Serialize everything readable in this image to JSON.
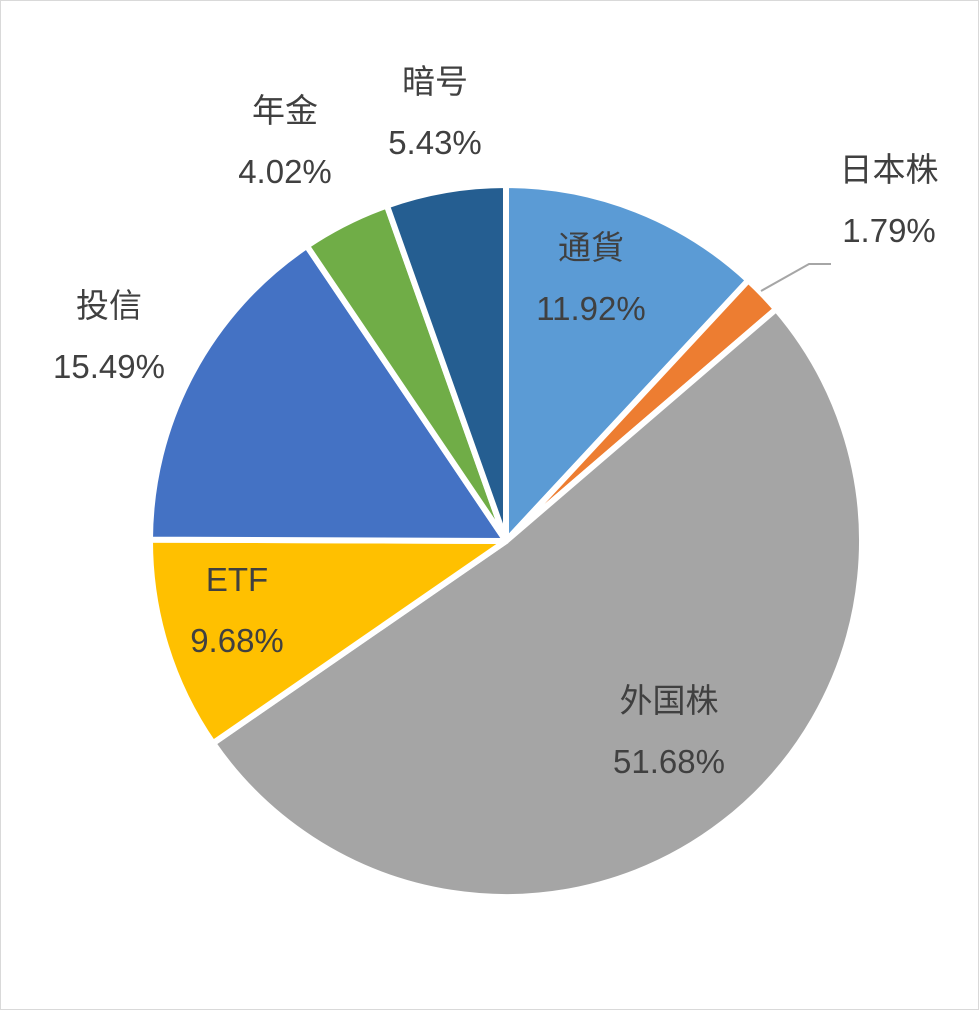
{
  "chart_data": {
    "type": "pie",
    "title": "",
    "start_angle_deg": 0,
    "direction": "clockwise",
    "slice_border_color": "#ffffff",
    "legend": "none",
    "slices": [
      {
        "label": "通貨",
        "value": 11.92,
        "value_label": "11.92%",
        "color": "#5B9BD5"
      },
      {
        "label": "日本株",
        "value": 1.79,
        "value_label": "1.79%",
        "color": "#ED7D31"
      },
      {
        "label": "外国株",
        "value": 51.68,
        "value_label": "51.68%",
        "color": "#A5A5A5"
      },
      {
        "label": "ETF",
        "value": 9.68,
        "value_label": "9.68%",
        "color": "#FFC000"
      },
      {
        "label": "投信",
        "value": 15.49,
        "value_label": "15.49%",
        "color": "#4472C4"
      },
      {
        "label": "年金",
        "value": 4.02,
        "value_label": "4.02%",
        "color": "#70AD47"
      },
      {
        "label": "暗号",
        "value": 5.43,
        "value_label": "5.43%",
        "color": "#255E91"
      }
    ]
  }
}
